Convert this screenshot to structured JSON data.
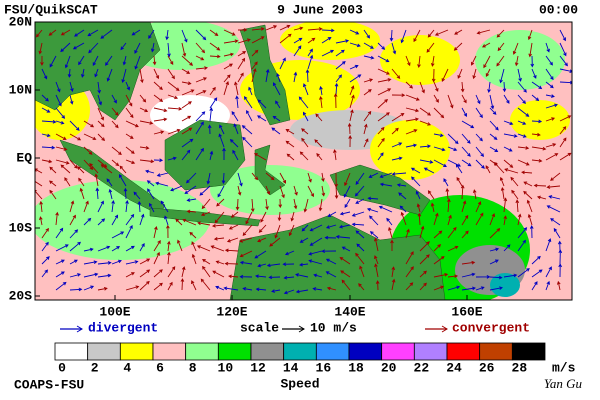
{
  "header": {
    "left": "FSU/QuikSCAT",
    "center": "9 June 2003",
    "right": "00:00"
  },
  "map": {
    "lat_labels": [
      "20N",
      "10N",
      "EQ",
      "10S",
      "20S"
    ],
    "lon_labels": [
      "100E",
      "120E",
      "140E",
      "160E"
    ]
  },
  "legend": {
    "divergent": "divergent",
    "scale": "scale",
    "scale_value": "10 m/s",
    "convergent": "convergent"
  },
  "colorbar": {
    "ticks": [
      0,
      2,
      4,
      6,
      8,
      10,
      12,
      14,
      16,
      18,
      20,
      22,
      24,
      26,
      28
    ],
    "unit": "m/s",
    "label": "Speed",
    "colors": [
      "#ffffff",
      "#c8c8c8",
      "#ffff00",
      "#ffc0c0",
      "#90ff90",
      "#00e000",
      "#909090",
      "#00b0b0",
      "#3090ff",
      "#0000c0",
      "#ff40ff",
      "#b080ff",
      "#ff0000",
      "#c04000",
      "#000000"
    ]
  },
  "footer": {
    "left": "COAPS-FSU",
    "right": "Yan Gu"
  }
}
